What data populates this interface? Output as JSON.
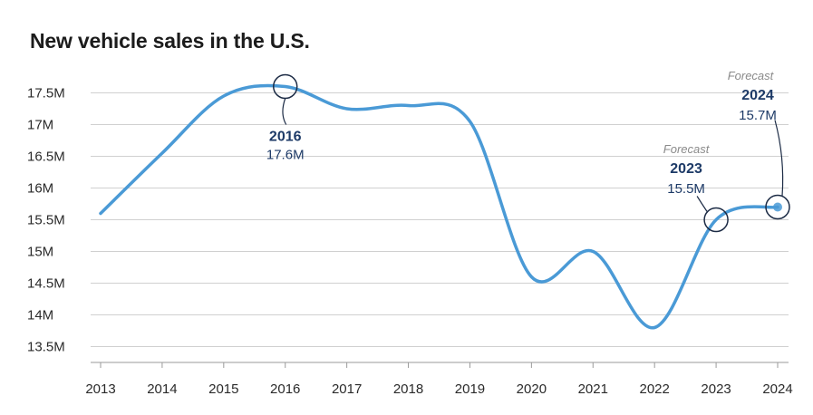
{
  "title": "New vehicle sales in the U.S.",
  "colors": {
    "line": "#4a9ad6",
    "annotation": "#1d3a67",
    "grid": "#d0d0d0",
    "axis": "#9a9a9a"
  },
  "chart_data": {
    "type": "line",
    "title": "New vehicle sales in the U.S.",
    "xlabel": "",
    "ylabel": "",
    "x": [
      2013,
      2014,
      2015,
      2016,
      2017,
      2018,
      2019,
      2020,
      2021,
      2022,
      2023,
      2024
    ],
    "x_tick_labels": [
      "2013",
      "2014",
      "2015",
      "2016",
      "2017",
      "2018",
      "2019",
      "2020",
      "2021",
      "2022",
      "2023",
      "2024"
    ],
    "series": [
      {
        "name": "New vehicle sales",
        "values": [
          15.6,
          16.55,
          17.45,
          17.6,
          17.25,
          17.3,
          17.05,
          14.6,
          15.0,
          13.8,
          15.5,
          15.7
        ]
      }
    ],
    "ylim": [
      13.25,
      17.75
    ],
    "y_ticks": [
      13.5,
      14,
      14.5,
      15,
      15.5,
      16,
      16.5,
      17,
      17.5
    ],
    "y_tick_labels": [
      "13.5M",
      "14M",
      "14.5M",
      "15M",
      "15.5M",
      "16M",
      "16.5M",
      "17M",
      "17.5M"
    ],
    "grid": true,
    "annotations": [
      {
        "x": 2016,
        "year": "2016",
        "value_label": "17.6M",
        "tag": ""
      },
      {
        "x": 2023,
        "year": "2023",
        "value_label": "15.5M",
        "tag": "Forecast"
      },
      {
        "x": 2024,
        "year": "2024",
        "value_label": "15.7M",
        "tag": "Forecast"
      }
    ]
  }
}
